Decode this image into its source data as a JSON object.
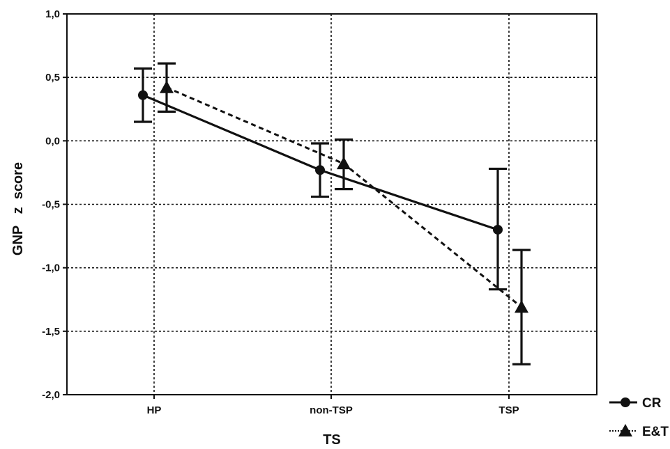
{
  "chart_data": {
    "type": "line",
    "xlabel": "TS",
    "ylabel": "GNP   z  score",
    "categories": [
      "HP",
      "non-TSP",
      "TSP"
    ],
    "ylim": [
      -2.0,
      1.0
    ],
    "yticks": [
      "1,0",
      "0,5",
      "0,0",
      "-0,5",
      "-1,0",
      "-1,5",
      "-2,0"
    ],
    "ytick_values": [
      1.0,
      0.5,
      0.0,
      -0.5,
      -1.0,
      -1.5,
      -2.0
    ],
    "grid": true,
    "legend_position": "bottom-right",
    "series": [
      {
        "name": "CR",
        "marker": "circle",
        "line_style": "solid",
        "values": [
          0.36,
          -0.23,
          -0.7
        ],
        "error_low": [
          0.15,
          -0.44,
          -1.17
        ],
        "error_high": [
          0.57,
          -0.02,
          -0.22
        ]
      },
      {
        "name": "E&T",
        "marker": "triangle",
        "line_style": "dashed",
        "values": [
          0.42,
          -0.18,
          -1.31
        ],
        "error_low": [
          0.23,
          -0.38,
          -1.76
        ],
        "error_high": [
          0.61,
          0.01,
          -0.86
        ]
      }
    ]
  }
}
